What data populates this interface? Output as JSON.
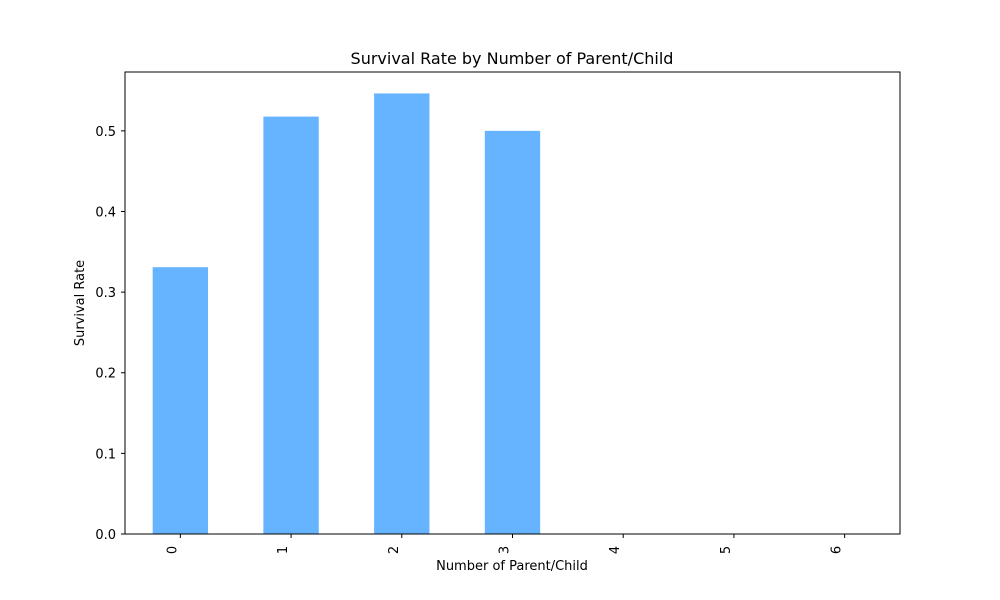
{
  "chart_data": {
    "type": "bar",
    "title": "Survival Rate by Number of Parent/Child",
    "xlabel": "Number of Parent/Child",
    "ylabel": "Survival Rate",
    "categories": [
      "0",
      "1",
      "2",
      "3",
      "4",
      "5",
      "6"
    ],
    "values": [
      0.3309,
      0.5177,
      0.5464,
      0.5,
      0.0,
      0.0,
      0.0
    ],
    "ylim": [
      0,
      0.573
    ],
    "yticks": [
      0.0,
      0.1,
      0.2,
      0.3,
      0.4,
      0.5
    ],
    "ytick_labels": [
      "0.0",
      "0.1",
      "0.2",
      "0.3",
      "0.4",
      "0.5"
    ],
    "grid": false,
    "bar_color": "#66b3ff"
  }
}
